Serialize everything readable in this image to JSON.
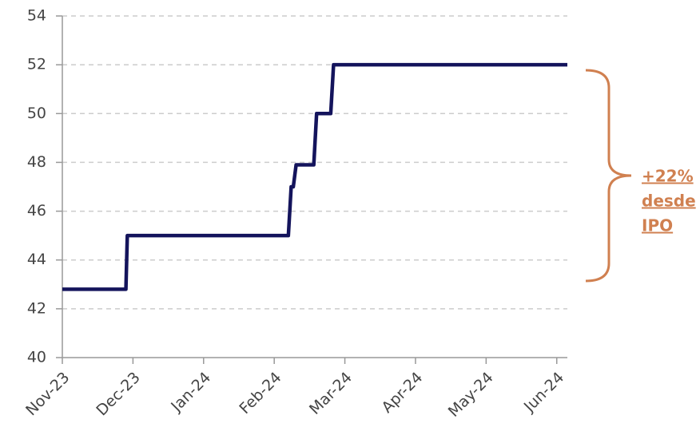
{
  "chart_data": {
    "type": "line",
    "x": [
      0,
      0.9,
      0.92,
      3.2,
      3.24,
      3.27,
      3.31,
      3.56,
      3.6,
      3.8,
      3.84,
      7.15
    ],
    "series": [
      {
        "color": "#14145c",
        "values": [
          42.8,
          42.8,
          45,
          45,
          47,
          47,
          47.9,
          47.9,
          50,
          50,
          52,
          52
        ]
      }
    ],
    "xlim": [
      0,
      7.15
    ],
    "xticks": [
      {
        "value": 0,
        "label": "Nov-23"
      },
      {
        "value": 1,
        "label": "Dec-23"
      },
      {
        "value": 2,
        "label": "Jan-24"
      },
      {
        "value": 3,
        "label": "Feb-24"
      },
      {
        "value": 4,
        "label": "Mar-24"
      },
      {
        "value": 5,
        "label": "Apr-24"
      },
      {
        "value": 6,
        "label": "May-24"
      },
      {
        "value": 7,
        "label": "Jun-24"
      }
    ],
    "ylim": [
      40,
      54
    ],
    "yticks": [
      40,
      42,
      44,
      46,
      48,
      50,
      52,
      54
    ],
    "grid": true,
    "annotation": [
      "+22%",
      "desde",
      "IPO"
    ],
    "annotation_color": "#d08050"
  }
}
